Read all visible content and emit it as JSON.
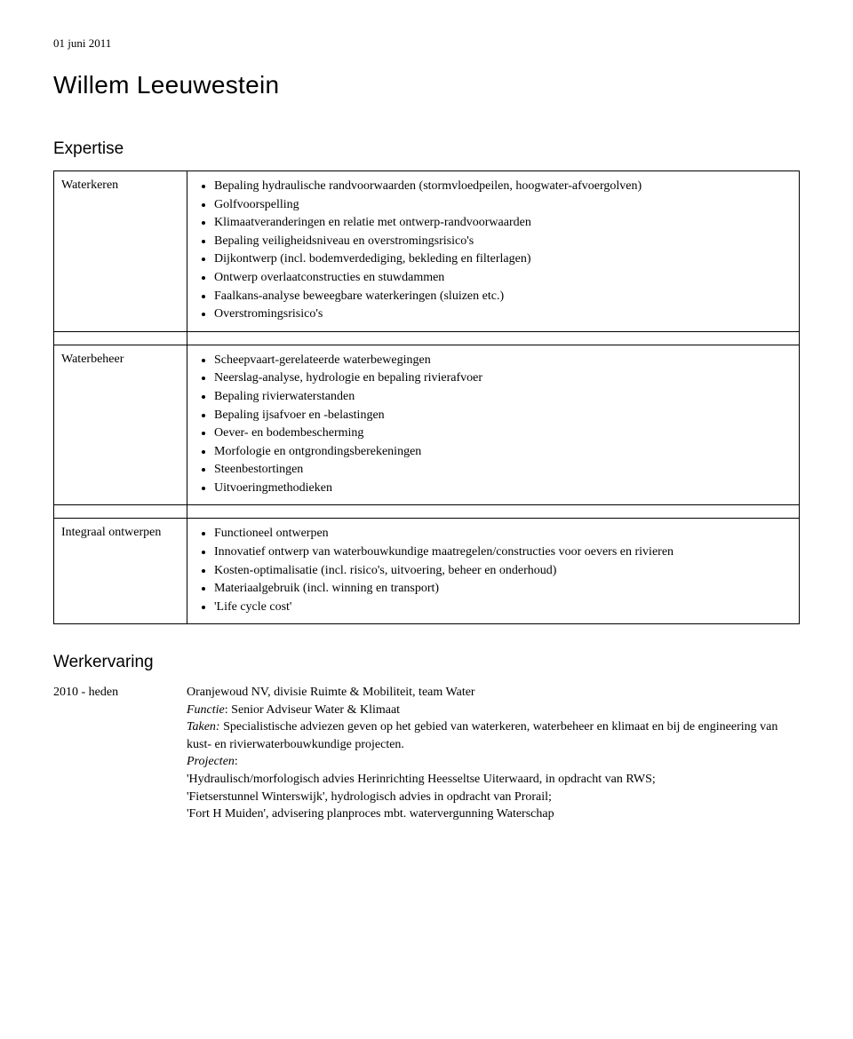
{
  "date": "01 juni 2011",
  "name": "Willem Leeuwestein",
  "expertise_heading": "Expertise",
  "expertise": [
    {
      "label": "Waterkeren",
      "items": [
        "Bepaling hydraulische randvoorwaarden (stormvloedpeilen, hoogwater-afvoergolven)",
        "Golfvoorspelling",
        "Klimaatveranderingen en relatie met ontwerp-randvoorwaarden",
        "Bepaling veiligheidsniveau en overstromingsrisico's",
        "Dijkontwerp (incl. bodemverdediging, bekleding en filterlagen)",
        "Ontwerp overlaatconstructies en stuwdammen",
        "Faalkans-analyse beweegbare waterkeringen (sluizen etc.)",
        "Overstromingsrisico's"
      ]
    },
    {
      "label": "Waterbeheer",
      "items": [
        "Scheepvaart-gerelateerde waterbewegingen",
        "Neerslag-analyse, hydrologie en bepaling rivierafvoer",
        "Bepaling rivierwaterstanden",
        "Bepaling ijsafvoer en -belastingen",
        "Oever- en bodembescherming",
        "Morfologie en ontgrondingsberekeningen",
        "Steenbestortingen",
        "Uitvoeringmethodieken"
      ]
    },
    {
      "label": "Integraal ontwerpen",
      "items": [
        "Functioneel ontwerpen",
        "Innovatief ontwerp van waterbouwkundige maatregelen/constructies voor oevers en rivieren",
        "Kosten-optimalisatie (incl. risico's, uitvoering, beheer en onderhoud)",
        "Materiaalgebruik (incl. winning en transport)",
        "'Life cycle cost'"
      ]
    }
  ],
  "werk_heading": "Werkervaring",
  "werk": {
    "period": "2010 - heden",
    "company": "Oranjewoud NV, divisie Ruimte & Mobiliteit, team Water",
    "role_label": "Functie",
    "role": "Senior Adviseur Water & Klimaat",
    "tasks_label": "Taken:",
    "tasks": "Specialistische adviezen geven op het gebied van waterkeren, waterbeheer en klimaat en bij de engineering van kust- en rivierwaterbouwkundige projecten.",
    "projects_label": "Projecten",
    "projects": [
      "'Hydraulisch/morfologisch advies Herinrichting Heesseltse Uiterwaard, in opdracht van RWS;",
      "'Fietserstunnel Winterswijk', hydrologisch advies in opdracht van Prorail;",
      "'Fort H Muiden', advisering planproces mbt. watervergunning Waterschap"
    ]
  }
}
